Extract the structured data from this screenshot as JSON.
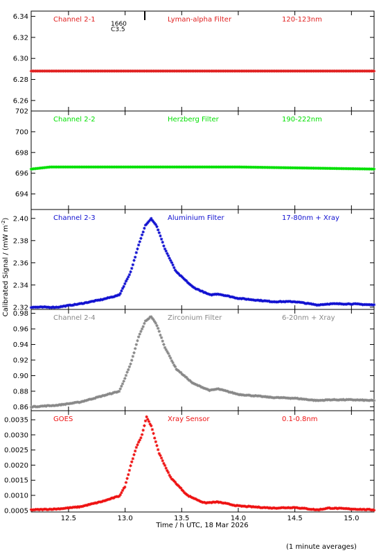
{
  "figure": {
    "ylabel": "Calibrated Signal / (mW m",
    "ylabel_sup": "-2",
    "ylabel_end": ")",
    "xlabel": "Time / h UTC, 18 Mar 2026",
    "footnote": "(1 minute averages)",
    "flare_class": "C3.5",
    "flare_time": "1660"
  },
  "chart_data": [
    {
      "type": "scatter",
      "channel": "Channel 2-1",
      "filter": "Lyman-alpha Filter",
      "band": "120-123nm",
      "color": "#e02020",
      "ylim": [
        6.25,
        6.345
      ],
      "yticks": [
        "6.26",
        "6.28",
        "6.30",
        "6.32",
        "6.34"
      ],
      "xlim": [
        12.17,
        15.2
      ],
      "xticks": [
        "12.5",
        "13.0",
        "13.5",
        "14.0",
        "14.5",
        "15.0"
      ],
      "baseline": 6.288,
      "x": [
        12.17,
        15.2
      ],
      "y": [
        6.288,
        6.288
      ]
    },
    {
      "type": "scatter",
      "channel": "Channel 2-2",
      "filter": "Herzberg Filter",
      "band": "190-222nm",
      "color": "#00e000",
      "ylim": [
        692.5,
        702.0
      ],
      "yticks": [
        "694",
        "696",
        "698",
        "700",
        "702"
      ],
      "xlim": [
        12.17,
        15.2
      ],
      "xticks": [
        "12.5",
        "13.0",
        "13.5",
        "14.0",
        "14.5",
        "15.0"
      ],
      "baseline": 696.4,
      "x": [
        12.17,
        12.34,
        14.0,
        15.2
      ],
      "y": [
        696.4,
        696.6,
        696.6,
        696.4
      ]
    },
    {
      "type": "scatter",
      "channel": "Channel 2-3",
      "filter": "Aluminium Filter",
      "band": "17-80nm + Xray",
      "color": "#1010d0",
      "ylim": [
        2.318,
        2.408
      ],
      "yticks": [
        "2.32",
        "2.34",
        "2.36",
        "2.38",
        "2.40"
      ],
      "xlim": [
        12.17,
        15.2
      ],
      "xticks": [
        "12.5",
        "13.0",
        "13.5",
        "14.0",
        "14.5",
        "15.0"
      ],
      "x": [
        12.17,
        12.4,
        12.6,
        12.8,
        12.95,
        13.05,
        13.12,
        13.18,
        13.23,
        13.28,
        13.35,
        13.45,
        13.6,
        13.75,
        13.82,
        14.0,
        14.3,
        14.5,
        14.7,
        14.8,
        15.0,
        15.2
      ],
      "y": [
        2.32,
        2.32,
        2.323,
        2.327,
        2.331,
        2.352,
        2.376,
        2.394,
        2.4,
        2.393,
        2.373,
        2.352,
        2.338,
        2.331,
        2.332,
        2.328,
        2.325,
        2.325,
        2.322,
        2.323,
        2.323,
        2.322
      ]
    },
    {
      "type": "scatter",
      "channel": "Channel 2-4",
      "filter": "Zirconium Filter",
      "band": "6-20nm + Xray",
      "color": "#888888",
      "ylim": [
        0.855,
        0.985
      ],
      "yticks": [
        "0.86",
        "0.88",
        "0.90",
        "0.92",
        "0.94",
        "0.96",
        "0.98"
      ],
      "xlim": [
        12.17,
        15.2
      ],
      "xticks": [
        "12.5",
        "13.0",
        "13.5",
        "14.0",
        "14.5",
        "15.0"
      ],
      "x": [
        12.17,
        12.4,
        12.6,
        12.8,
        12.95,
        13.05,
        13.12,
        13.18,
        13.23,
        13.28,
        13.35,
        13.45,
        13.6,
        13.75,
        13.82,
        14.0,
        14.3,
        14.5,
        14.7,
        14.8,
        15.0,
        15.2
      ],
      "y": [
        0.86,
        0.862,
        0.866,
        0.874,
        0.88,
        0.915,
        0.95,
        0.97,
        0.976,
        0.965,
        0.937,
        0.909,
        0.89,
        0.881,
        0.883,
        0.876,
        0.872,
        0.871,
        0.868,
        0.869,
        0.869,
        0.868
      ]
    },
    {
      "type": "scatter",
      "channel": "GOES",
      "filter": "Xray Sensor",
      "band": "0.1-0.8nm",
      "color": "#ee1111",
      "ylim": [
        0.00045,
        0.0038
      ],
      "yticks": [
        "0.0005",
        "0.0010",
        "0.0015",
        "0.0020",
        "0.0025",
        "0.0030",
        "0.0035"
      ],
      "xlim": [
        12.17,
        15.2
      ],
      "xticks": [
        "12.5",
        "13.0",
        "13.5",
        "14.0",
        "14.5",
        "15.0"
      ],
      "x": [
        12.17,
        12.4,
        12.6,
        12.8,
        12.95,
        13.0,
        13.05,
        13.1,
        13.15,
        13.19,
        13.23,
        13.3,
        13.4,
        13.55,
        13.7,
        13.82,
        14.0,
        14.3,
        14.5,
        14.7,
        14.8,
        15.0,
        15.2
      ],
      "y": [
        0.00052,
        0.00055,
        0.00062,
        0.0008,
        0.00098,
        0.0013,
        0.002,
        0.0026,
        0.003,
        0.0036,
        0.0033,
        0.0024,
        0.0016,
        0.001,
        0.00075,
        0.00078,
        0.00065,
        0.00058,
        0.0006,
        0.00052,
        0.00058,
        0.00055,
        0.00052
      ]
    }
  ]
}
